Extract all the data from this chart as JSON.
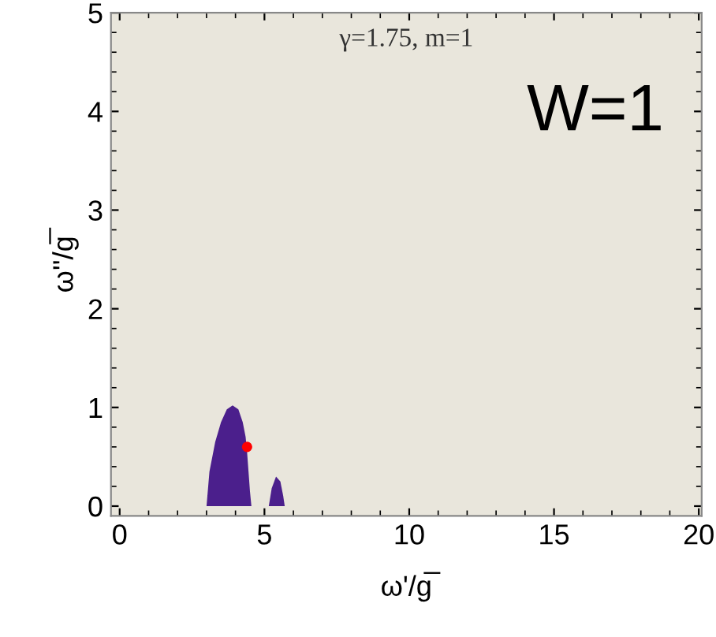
{
  "chart_data": {
    "type": "area",
    "xlabel": "ω'/g̅",
    "ylabel": "ω''/g̅",
    "annotations": [
      "γ=1.75, m=1",
      "W=1"
    ],
    "xlim": [
      -0.3,
      20.1
    ],
    "ylim": [
      -0.1,
      5.0
    ],
    "xticks": [
      0,
      5,
      10,
      15,
      20
    ],
    "yticks": [
      0,
      1,
      2,
      3,
      4,
      5
    ],
    "grid": false,
    "legend": false,
    "series": [
      {
        "color": "#4b1f8c",
        "x": [
          3.0,
          3.1,
          3.3,
          3.5,
          3.7,
          3.9,
          4.1,
          4.25,
          4.35,
          4.4,
          4.45,
          4.5,
          4.55
        ],
        "values": [
          0,
          0.35,
          0.65,
          0.85,
          0.98,
          1.02,
          0.98,
          0.85,
          0.7,
          0.55,
          0.35,
          0.15,
          0
        ]
      },
      {
        "color": "#4b1f8c",
        "x": [
          5.15,
          5.25,
          5.4,
          5.55,
          5.65,
          5.7
        ],
        "values": [
          0,
          0.18,
          0.3,
          0.25,
          0.1,
          0
        ]
      },
      {
        "type": "scatter",
        "color": "#ff0000",
        "marker": "circle",
        "x": [
          4.4
        ],
        "values": [
          0.6
        ]
      }
    ]
  }
}
